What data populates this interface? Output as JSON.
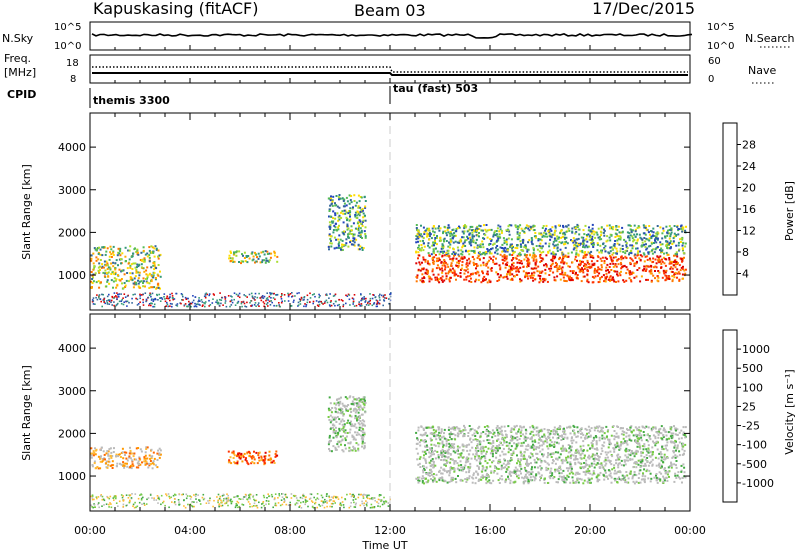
{
  "header": {
    "station": "Kapuskasing (fitACF)",
    "beam": "Beam 03",
    "date": "17/Dec/2015"
  },
  "top_panels": {
    "nsky_label": "N.Sky",
    "nsky_ticks": [
      "10^5",
      "10^0"
    ],
    "nsearch_label": "N.Search",
    "freq_label_1": "Freq.",
    "freq_label_2": "[MHz]",
    "freq_ticks": [
      "18",
      "8"
    ],
    "nave_label": "Nave",
    "nave_ticks": [
      "60",
      "0"
    ],
    "cpid_label": "CPID",
    "cpid_segments": [
      {
        "name": "themis 3300",
        "start_hour": 0
      },
      {
        "name": "tau (fast) 503",
        "start_hour": 12
      }
    ]
  },
  "power_colorbar": {
    "label": "Power [dB]",
    "ticks": [
      "28",
      "24",
      "20",
      "16",
      "12",
      "8",
      "4"
    ],
    "colors": [
      "#dd0000",
      "#ff3300",
      "#ff7700",
      "#ffaa00",
      "#ffdd00",
      "#aadd33",
      "#55bb55",
      "#339977",
      "#336699",
      "#2244bb",
      "#0000ff"
    ]
  },
  "velocity_colorbar": {
    "label": "Velocity [m s⁻¹]",
    "ticks": [
      "1000",
      "500",
      "100",
      "25",
      "-25",
      "-100",
      "-500",
      "-1000"
    ],
    "colors": [
      "#2244bb",
      "#3377aa",
      "#338866",
      "#44aa44",
      "#77cc44",
      "#bbbbbb",
      "#bbbbbb",
      "#ffbb33",
      "#ff9900",
      "#ff6600",
      "#ff3300",
      "#dd0000"
    ]
  },
  "chart_data": [
    {
      "type": "heatmap",
      "title": "Power",
      "ylabel": "Slant Range [km]",
      "xlabel": "Time UT",
      "x_ticks": [
        "00:00",
        "04:00",
        "08:00",
        "12:00",
        "16:00",
        "20:00",
        "00:00"
      ],
      "y_ticks": [
        1000,
        2000,
        3000,
        4000
      ],
      "xlim_hours": [
        0,
        24
      ],
      "ylim_km": [
        180,
        4800
      ],
      "scatter_regions": [
        {
          "t": [
            0,
            2.8
          ],
          "r": [
            700,
            1700
          ],
          "level": "mid"
        },
        {
          "t": [
            5.5,
            7.5
          ],
          "r": [
            1300,
            1600
          ],
          "level": "mid"
        },
        {
          "t": [
            9.5,
            11.0
          ],
          "r": [
            1600,
            2900
          ],
          "level": "low"
        },
        {
          "t": [
            13.0,
            23.8
          ],
          "r": [
            850,
            1500
          ],
          "level": "high"
        },
        {
          "t": [
            13.0,
            23.8
          ],
          "r": [
            1500,
            2200
          ],
          "level": "low"
        }
      ]
    },
    {
      "type": "heatmap",
      "title": "Velocity",
      "ylabel": "Slant Range [km]",
      "xlabel": "Time UT",
      "x_ticks": [
        "00:00",
        "04:00",
        "08:00",
        "12:00",
        "16:00",
        "20:00",
        "00:00"
      ],
      "y_ticks": [
        1000,
        2000,
        3000,
        4000
      ],
      "xlim_hours": [
        0,
        24
      ],
      "ylim_km": [
        180,
        4800
      ],
      "scatter_regions": [
        {
          "t": [
            0,
            2.8
          ],
          "r": [
            1200,
            1700
          ],
          "level": "neg"
        },
        {
          "t": [
            5.5,
            7.5
          ],
          "r": [
            1300,
            1600
          ],
          "level": "neg-strong"
        },
        {
          "t": [
            9.5,
            11.0
          ],
          "r": [
            1600,
            2900
          ],
          "level": "zero"
        },
        {
          "t": [
            13.0,
            23.8
          ],
          "r": [
            850,
            2200
          ],
          "level": "zero"
        }
      ]
    }
  ],
  "time_label": "Time UT"
}
